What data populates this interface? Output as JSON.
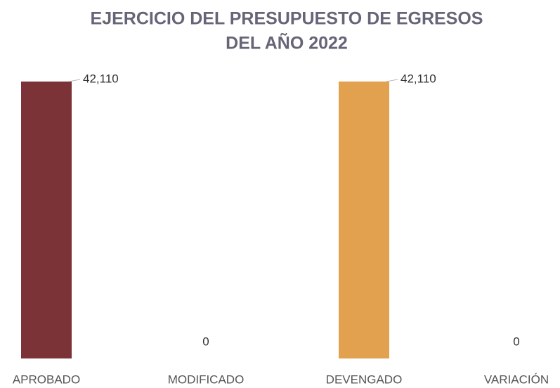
{
  "chart_data": {
    "type": "bar",
    "title": [
      "EJERCICIO DEL PRESUPUESTO DE EGRESOS",
      "DEL AÑO 2022"
    ],
    "categories": [
      "APROBADO",
      "MODIFICADO",
      "DEVENGADO",
      "VARIACIÓN"
    ],
    "values": [
      42110,
      0,
      42110,
      0
    ],
    "value_labels": [
      "42,110",
      "0",
      "42,110",
      "0"
    ],
    "colors": [
      "#7b3338",
      "#7b3338",
      "#e2a14e",
      "#e2a14e"
    ],
    "ylim": [
      0,
      42110
    ]
  }
}
